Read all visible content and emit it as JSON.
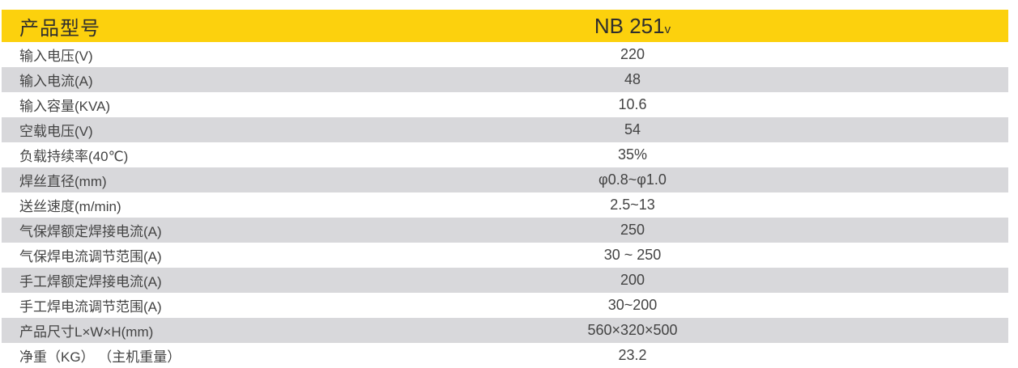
{
  "table": {
    "header": {
      "label": "产品型号",
      "model": "NB 251",
      "model_suffix": "v"
    },
    "rows": [
      {
        "label": "输入电压(V)",
        "value": "220"
      },
      {
        "label": "输入电流(A)",
        "value": "48"
      },
      {
        "label": "输入容量(KVA)",
        "value": "10.6"
      },
      {
        "label": "空载电压(V)",
        "value": "54"
      },
      {
        "label": "负载持续率(40℃)",
        "value": "35%"
      },
      {
        "label": "焊丝直径(mm)",
        "value": "φ0.8~φ1.0"
      },
      {
        "label": "送丝速度(m/min)",
        "value": "2.5~13"
      },
      {
        "label": "气保焊额定焊接电流(A)",
        "value": "250"
      },
      {
        "label": "气保焊电流调节范围(A)",
        "value": "30 ~ 250"
      },
      {
        "label": "手工焊额定焊接电流(A)",
        "value": "200"
      },
      {
        "label": "手工焊电流调节范围(A)",
        "value": "30~200"
      },
      {
        "label": "产品尺寸L×W×H(mm)",
        "value": "560×320×500"
      },
      {
        "label": "净重（KG） （主机重量）",
        "value": "23.2"
      }
    ],
    "colors": {
      "header_bg": "#FCD10D",
      "header_text": "#2E2E2E",
      "row_bg": "#FFFFFF",
      "row_alt_bg": "#D8D8DB",
      "text": "#434343"
    }
  }
}
